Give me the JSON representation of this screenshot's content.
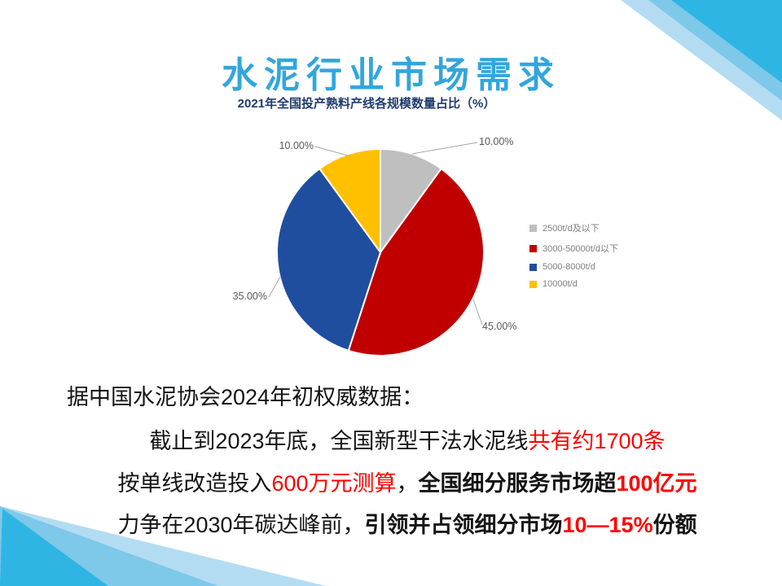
{
  "title": "水泥行业市场需求",
  "theme": {
    "title_color": "#32A6DB",
    "accent_cyan": "#2FB5E4",
    "accent_mid": "#7EC8E9",
    "accent_light": "#B3DCF2",
    "leader_line_color": "#A6A6A6"
  },
  "chart_data": {
    "type": "pie",
    "title": "2021年全国投产熟料产线各规模数量占比（%）",
    "start_angle_deg": 0,
    "direction": "clockwise",
    "legend_position": "right",
    "slices": [
      {
        "legend_label": "2500t/d及以下",
        "value": 10,
        "pct_label": "10.00%",
        "color": "#BFBFBF"
      },
      {
        "legend_label": "3000-50000t/d以下",
        "value": 45,
        "pct_label": "45.00%",
        "color": "#C00000"
      },
      {
        "legend_label": "5000-8000t/d",
        "value": 35,
        "pct_label": "35.00%",
        "color": "#1F4E9E"
      },
      {
        "legend_label": "10000t/d",
        "value": 10,
        "pct_label": "10.00%",
        "color": "#FFC000"
      }
    ]
  },
  "body": {
    "line1": "据中国水泥协会2024年初权威数据：",
    "line2_black": "截止到2023年底，全国新型干法水泥线",
    "line2_red": "共有约1700条",
    "line3_black1": "按单线改造投入",
    "line3_red1": "600万元测算",
    "line3_black2": "，",
    "line3_bold_black": "全国细分服务市场超",
    "line3_bold_red": "100亿元",
    "line4_black": "力争在2030年碳达峰前，",
    "line4_bold_black1": "引领并占领细分市场",
    "line4_bold_red": "10—15%",
    "line4_bold_black2": "份额"
  }
}
